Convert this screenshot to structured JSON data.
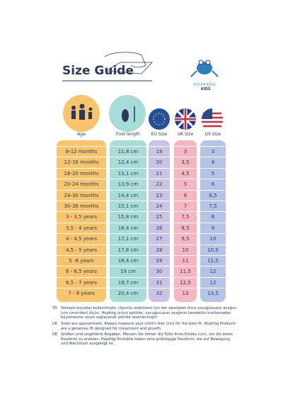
{
  "header": {
    "title": "Size Guide",
    "brand": "HOPFRÖG",
    "brand_sub": "KIDS"
  },
  "table": {
    "columns": [
      "Age",
      "Foot length",
      "EU Size",
      "UK Size",
      "US Size"
    ],
    "rows": [
      [
        "8-12 months",
        "11,8 cm",
        "19",
        "3",
        "3"
      ],
      [
        "12-16 months",
        "12,4 cm",
        "20",
        "3,5",
        "4"
      ],
      [
        "16-20 months",
        "13,1 cm",
        "21",
        "4,5",
        "5"
      ],
      [
        "20-24 months",
        "13,9 cm",
        "22",
        "5",
        "6"
      ],
      [
        "24-30 months",
        "14,4 cm",
        "23",
        "6",
        "6,5"
      ],
      [
        "30-36 months",
        "15,1 cm",
        "24",
        "7",
        "7,5"
      ],
      [
        "3 - 3,5 years",
        "15,8 cm",
        "25",
        "7,5",
        "8"
      ],
      [
        "3,5 - 4 years",
        "16,4 cm",
        "26",
        "8,5",
        "9"
      ],
      [
        "4 - 4,5 years",
        "17,1 cm",
        "27",
        "9,5",
        "10"
      ],
      [
        "4,5 - 5 years",
        "17,8 cm",
        "28",
        "10",
        "10,5"
      ],
      [
        "5 -6 years",
        "18,4 cm",
        "29",
        "11",
        "11,5"
      ],
      [
        "6 - 6,5 years",
        "19 cm",
        "30",
        "11,5",
        "12"
      ],
      [
        "6,5 - 7 years",
        "19,7 cm",
        "31",
        "12,5",
        "12"
      ],
      [
        "7 - 8 years",
        "20,4 cm",
        "32",
        "13",
        "13,5"
      ]
    ]
  },
  "notes": [
    {
      "lang": "TR",
      "text": "Yaklaşık boyutlar kullanılmıştır. Uyumlu olabilmesi için her siparişten önce çocuğunuzun ayağını (cm cinsinden) ölçün. Hopfrög ürünü patikler, çocuğunuzun ayağının hareketini kısıtlamadan büyümesine uyum sağlayacak şekilde tasarlanmıştır."
    },
    {
      "lang": "UK",
      "text": "Sizes are approximate. Always measure your child's feet (cm) for the best fit. Hopfrög Products are a generous fit designed for movement and growth."
    },
    {
      "lang": "DE",
      "text": "Größen sind ungefähre Angaben. Messen Sie immer die Füße Ihres Kindes (cm), um die beste Passform zu erzielen. Hopfrög Produkte haben eine großzügige Passform, die auf Bewegung und Wachstum ausgelegt ist."
    }
  ]
}
